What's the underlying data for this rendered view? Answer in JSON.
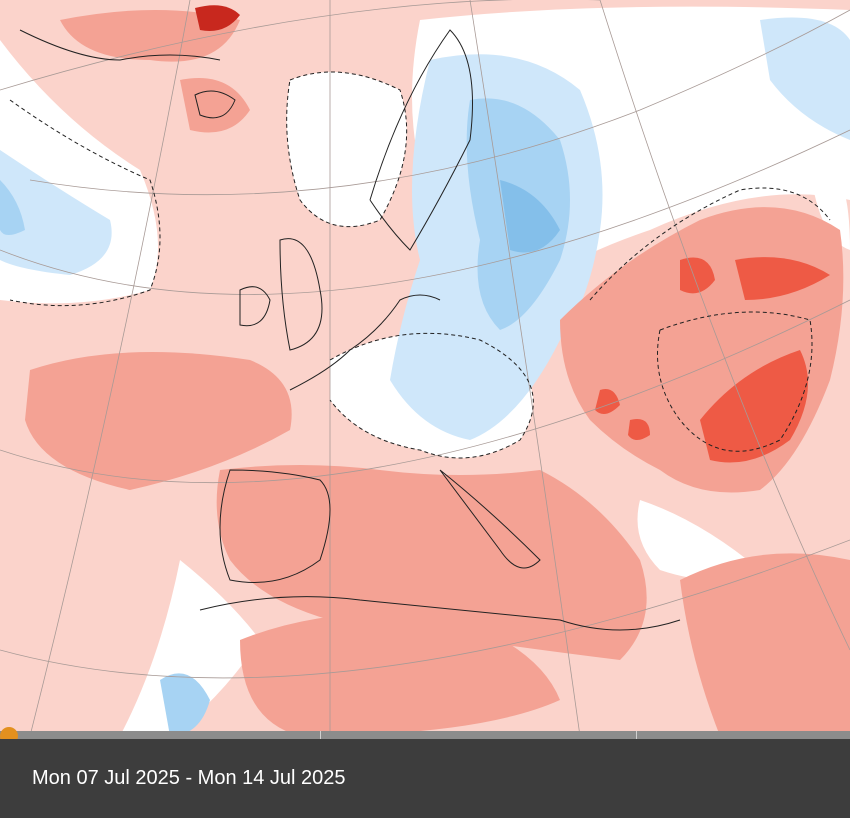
{
  "map": {
    "colors": {
      "ocean_warm_light": "#fbd3cb",
      "warm_medium": "#f4a294",
      "warm_strong": "#ee5a45",
      "warm_extreme": "#c8281e",
      "neutral": "#ffffff",
      "cool_light": "#cfe7fa",
      "cool_medium": "#a7d3f3",
      "cool_strong": "#84bfea"
    }
  },
  "timeline": {
    "position_fraction": 0.0,
    "thumb_color": "#e3901f"
  },
  "footer": {
    "date_range": "Mon 07 Jul 2025 - Mon 14 Jul 2025"
  }
}
